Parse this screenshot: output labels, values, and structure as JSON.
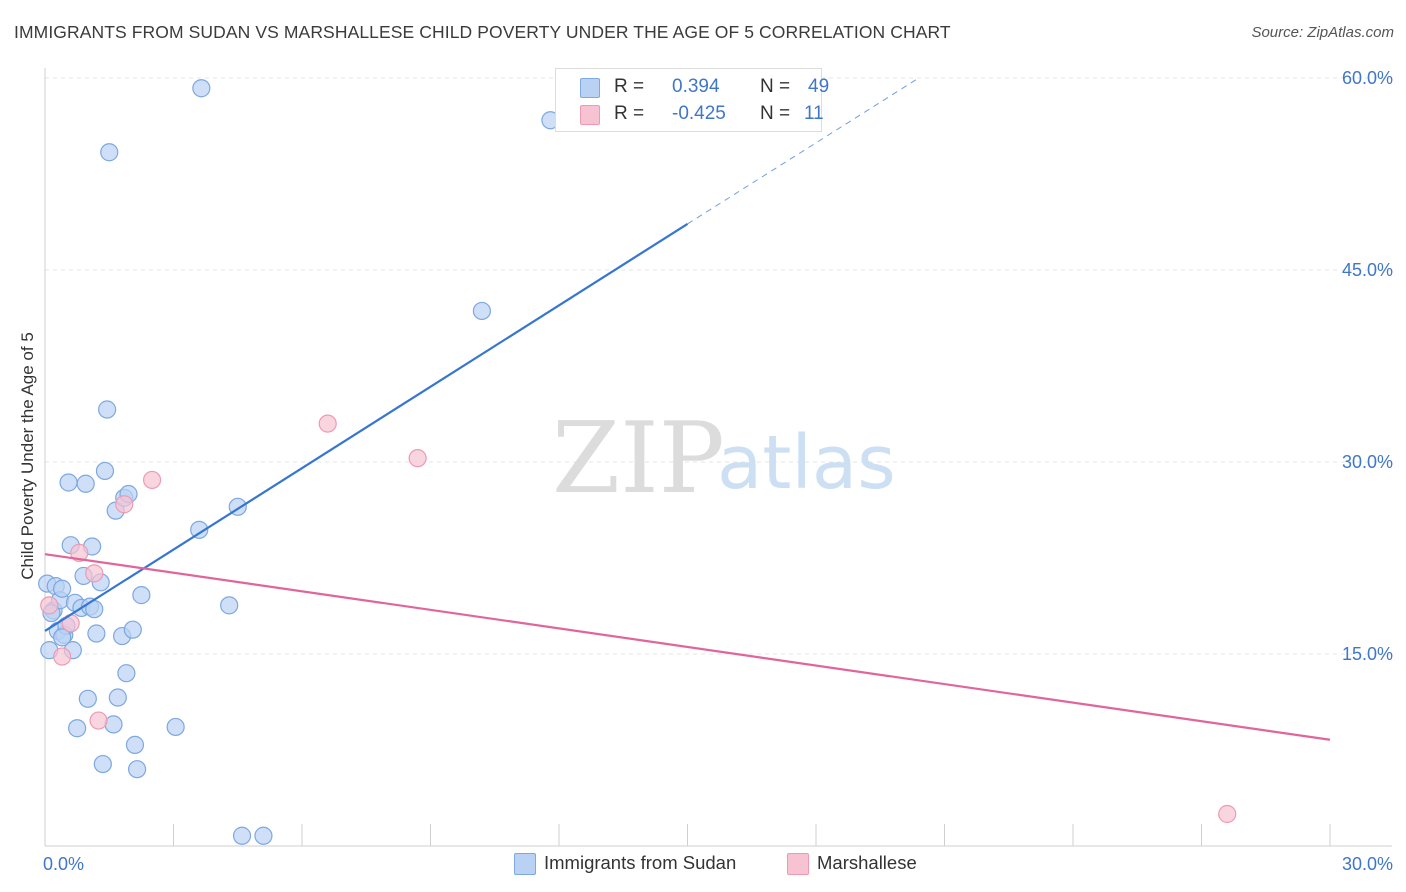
{
  "header": {
    "title": "IMMIGRANTS FROM SUDAN VS MARSHALLESE CHILD POVERTY UNDER THE AGE OF 5 CORRELATION CHART",
    "source": "Source: ZipAtlas.com"
  },
  "watermark": {
    "zip": "ZIP",
    "atlas": "atlas"
  },
  "legend": {
    "rows": [
      {
        "r_label": "R = ",
        "r_value": "0.394",
        "n_label": "N = ",
        "n_value": "49"
      },
      {
        "r_label": "R = ",
        "r_value": "-0.425",
        "n_label": "N = ",
        "n_value": "11"
      }
    ]
  },
  "colors": {
    "blue_fill": "#b9d2f3",
    "blue_stroke": "#7da8e0",
    "blue_line": "#3576d0",
    "pink_fill": "#f7c3d3",
    "pink_stroke": "#ee9ab4",
    "pink_line": "#e0659a",
    "tick": "#3f77c8",
    "grid": "#e6e6e6"
  },
  "chart_data": {
    "type": "scatter",
    "title": "IMMIGRANTS FROM SUDAN VS MARSHALLESE CHILD POVERTY UNDER THE AGE OF 5 CORRELATION CHART",
    "xlabel": "",
    "ylabel": "Child Poverty Under the Age of 5",
    "xlim": [
      0,
      30
    ],
    "ylim": [
      0,
      60
    ],
    "x_tick_labels": [
      "0.0%",
      "30.0%"
    ],
    "y_ticks": [
      15,
      30,
      45,
      60
    ],
    "y_tick_labels": [
      "15.0%",
      "30.0%",
      "45.0%",
      "60.0%"
    ],
    "grid": true,
    "legend_position": "top-center",
    "series": [
      {
        "name": "Immigrants from Sudan",
        "color": "#b9d2f3",
        "points": [
          [
            0.05,
            20.5
          ],
          [
            0.1,
            15.3
          ],
          [
            0.2,
            18.4
          ],
          [
            0.25,
            20.3
          ],
          [
            0.3,
            16.8
          ],
          [
            0.35,
            19.2
          ],
          [
            0.4,
            20.1
          ],
          [
            0.45,
            16.5
          ],
          [
            0.5,
            17.2
          ],
          [
            0.55,
            28.4
          ],
          [
            0.6,
            23.5
          ],
          [
            0.65,
            15.3
          ],
          [
            0.7,
            19.0
          ],
          [
            0.75,
            9.2
          ],
          [
            0.85,
            18.6
          ],
          [
            0.9,
            21.1
          ],
          [
            0.95,
            28.3
          ],
          [
            1.0,
            11.5
          ],
          [
            1.05,
            18.7
          ],
          [
            1.1,
            23.4
          ],
          [
            1.2,
            16.6
          ],
          [
            1.3,
            20.6
          ],
          [
            1.35,
            6.4
          ],
          [
            1.4,
            29.3
          ],
          [
            1.45,
            34.1
          ],
          [
            1.5,
            54.2
          ],
          [
            1.6,
            9.5
          ],
          [
            1.65,
            26.2
          ],
          [
            1.7,
            11.6
          ],
          [
            1.8,
            16.4
          ],
          [
            1.85,
            27.2
          ],
          [
            1.9,
            13.5
          ],
          [
            1.95,
            27.5
          ],
          [
            2.05,
            16.9
          ],
          [
            2.1,
            7.9
          ],
          [
            2.15,
            6.0
          ],
          [
            2.25,
            19.6
          ],
          [
            3.05,
            9.3
          ],
          [
            3.6,
            24.7
          ],
          [
            3.65,
            59.2
          ],
          [
            4.3,
            18.8
          ],
          [
            4.5,
            26.5
          ],
          [
            4.6,
            0.8
          ],
          [
            5.1,
            0.8
          ],
          [
            10.2,
            41.8
          ],
          [
            11.8,
            56.7
          ],
          [
            0.15,
            18.2
          ],
          [
            0.4,
            16.3
          ],
          [
            1.15,
            18.5
          ]
        ]
      },
      {
        "name": "Marshallese",
        "color": "#f7c3d3",
        "points": [
          [
            0.1,
            18.8
          ],
          [
            0.4,
            14.8
          ],
          [
            0.6,
            17.4
          ],
          [
            0.8,
            22.9
          ],
          [
            1.15,
            21.3
          ],
          [
            1.25,
            9.8
          ],
          [
            1.85,
            26.7
          ],
          [
            2.5,
            28.6
          ],
          [
            6.6,
            33.0
          ],
          [
            8.7,
            30.3
          ],
          [
            27.6,
            2.5
          ]
        ]
      }
    ],
    "trend_lines": [
      {
        "series": "Immigrants from Sudan",
        "from": [
          0,
          16.8
        ],
        "to": [
          15,
          48.6
        ],
        "dashed_to": [
          20.4,
          60.0
        ]
      },
      {
        "series": "Marshallese",
        "from": [
          0,
          22.8
        ],
        "to": [
          30,
          8.3
        ]
      }
    ]
  },
  "bottom_legend": {
    "items": [
      {
        "label": "Immigrants from Sudan"
      },
      {
        "label": "Marshallese"
      }
    ]
  }
}
